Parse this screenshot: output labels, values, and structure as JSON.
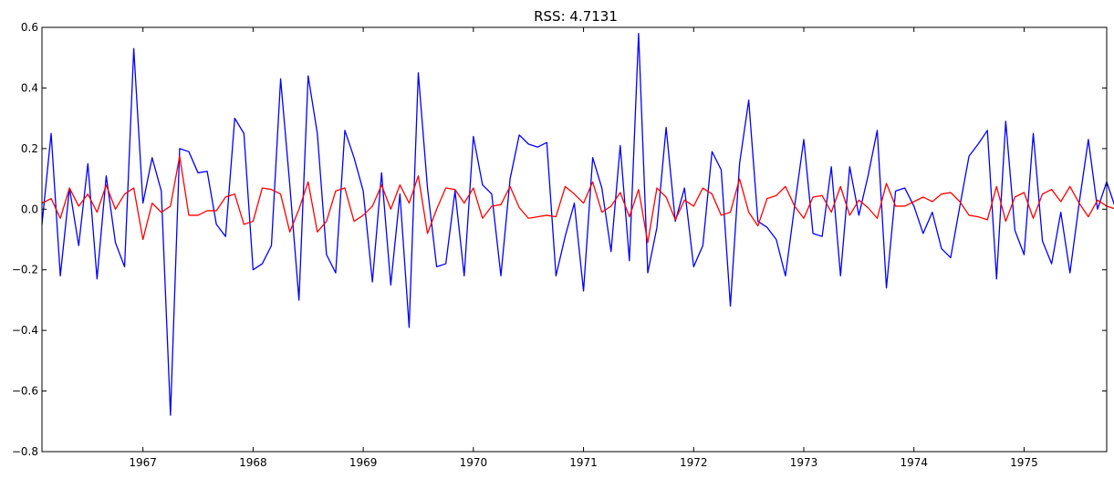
{
  "chart_data": {
    "type": "line",
    "title": "RSS: 4.7131",
    "xlabel": "",
    "ylabel": "",
    "xlim": [
      1966.0833,
      1975.75
    ],
    "ylim": [
      -0.8,
      0.6
    ],
    "grid": false,
    "legend": "none",
    "x_ticks": [
      "1967",
      "1968",
      "1969",
      "1970",
      "1971",
      "1972",
      "1973",
      "1974",
      "1975"
    ],
    "y_ticks": [
      "0.6",
      "0.4",
      "0.2",
      "0.0",
      "−0.2",
      "−0.4",
      "−0.6",
      "−0.8"
    ],
    "x_start": "1966-02",
    "x_step": "1 month",
    "series": [
      {
        "color": "#0000ff",
        "values": [
          -0.05,
          0.25,
          -0.22,
          0.07,
          -0.12,
          0.15,
          -0.23,
          0.11,
          -0.11,
          -0.19,
          0.53,
          0.02,
          0.17,
          0.06,
          -0.68,
          0.2,
          0.19,
          0.12,
          0.125,
          -0.05,
          -0.09,
          0.3,
          0.25,
          -0.2,
          -0.18,
          -0.12,
          0.43,
          0.08,
          -0.3,
          0.44,
          0.25,
          -0.15,
          -0.21,
          0.26,
          0.17,
          0.06,
          -0.24,
          0.12,
          -0.25,
          0.05,
          -0.39,
          0.45,
          0.07,
          -0.19,
          -0.18,
          0.06,
          -0.22,
          0.24,
          0.08,
          0.05,
          -0.22,
          0.1,
          0.245,
          0.215,
          0.205,
          0.22,
          -0.22,
          -0.09,
          0.02,
          -0.27,
          0.17,
          0.07,
          -0.14,
          0.21,
          -0.17,
          0.58,
          -0.21,
          -0.06,
          0.27,
          -0.04,
          0.07,
          -0.19,
          -0.12,
          0.19,
          0.13,
          -0.32,
          0.15,
          0.36,
          -0.04,
          -0.06,
          -0.1,
          -0.22,
          0.01,
          0.23,
          -0.08,
          -0.09,
          0.14,
          -0.22,
          0.14,
          -0.02,
          0.11,
          0.26,
          -0.26,
          0.06,
          0.07,
          0.01,
          -0.08,
          -0.01,
          -0.13,
          -0.16,
          0.01,
          0.175,
          0.215,
          0.26,
          -0.23,
          0.29,
          -0.07,
          -0.15,
          0.25,
          -0.105,
          -0.18,
          -0.01,
          -0.21,
          0.02,
          0.23,
          0.0,
          0.09,
          0.0
        ]
      },
      {
        "color": "#ff0000",
        "values": [
          0.02,
          0.035,
          -0.03,
          0.07,
          0.01,
          0.05,
          -0.01,
          0.08,
          0.0,
          0.05,
          0.07,
          -0.1,
          0.02,
          -0.01,
          0.01,
          0.175,
          -0.02,
          -0.02,
          -0.005,
          -0.005,
          0.04,
          0.05,
          -0.05,
          -0.04,
          0.07,
          0.065,
          0.05,
          -0.075,
          0.0,
          0.09,
          -0.075,
          -0.04,
          0.06,
          0.07,
          -0.04,
          -0.02,
          0.01,
          0.08,
          0.0,
          0.08,
          0.02,
          0.11,
          -0.08,
          0.0,
          0.07,
          0.065,
          0.02,
          0.07,
          -0.03,
          0.01,
          0.015,
          0.075,
          0.005,
          -0.03,
          -0.025,
          -0.02,
          -0.025,
          0.075,
          0.05,
          0.02,
          0.09,
          -0.01,
          0.01,
          0.055,
          -0.025,
          0.065,
          -0.11,
          0.07,
          0.04,
          -0.035,
          0.03,
          0.01,
          0.07,
          0.05,
          -0.02,
          -0.01,
          0.1,
          -0.01,
          -0.055,
          0.035,
          0.045,
          0.075,
          0.01,
          -0.03,
          0.04,
          0.045,
          -0.01,
          0.075,
          -0.02,
          0.03,
          0.005,
          -0.03,
          0.085,
          0.01,
          0.01,
          0.025,
          0.04,
          0.025,
          0.05,
          0.055,
          0.025,
          -0.02,
          -0.025,
          -0.035,
          0.075,
          -0.04,
          0.04,
          0.055,
          -0.03,
          0.05,
          0.065,
          0.025,
          0.075,
          0.02,
          -0.025,
          0.03,
          0.01,
          0.0
        ]
      }
    ]
  }
}
